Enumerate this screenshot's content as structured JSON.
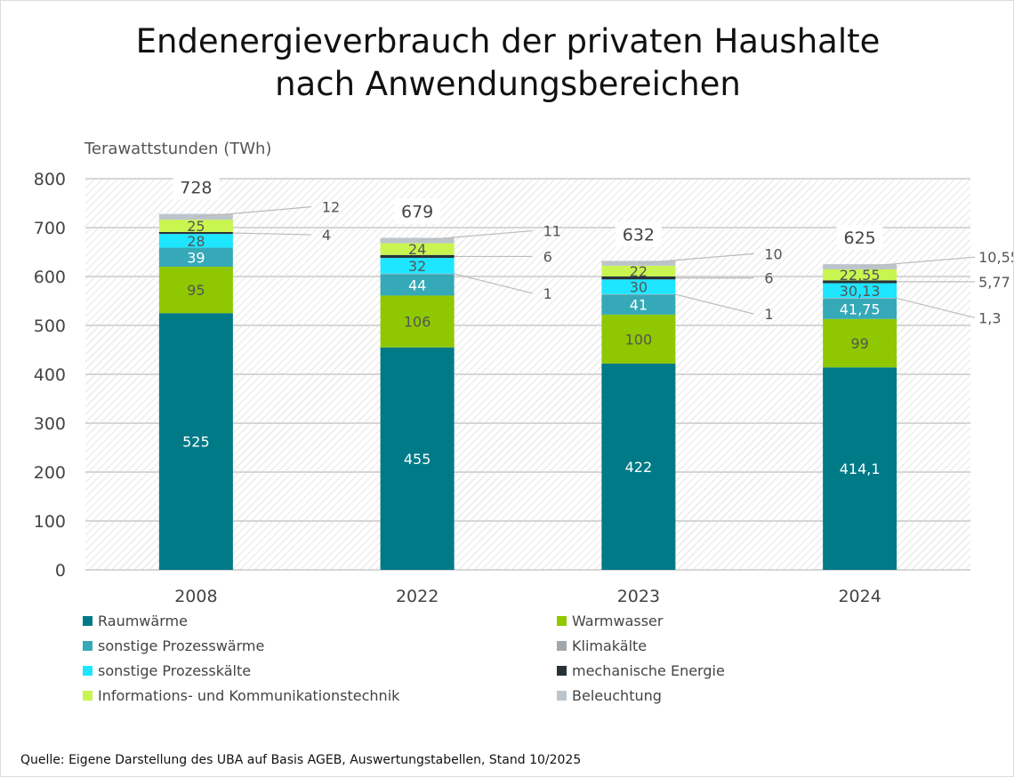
{
  "title_line1": "Endenergieverbrauch der privaten Haushalte",
  "title_line2": "nach Anwendungsbereichen",
  "source": "Quelle: Eigene Darstellung des UBA auf Basis AGEB, Auswertungstabellen, Stand 10/2025",
  "chart_data": {
    "type": "bar",
    "stacked": true,
    "ylabel": "Terawattstunden (TWh)",
    "ylim": [
      0,
      800
    ],
    "yticks": [
      0,
      100,
      200,
      300,
      400,
      500,
      600,
      700,
      800
    ],
    "categories": [
      "2008",
      "2022",
      "2023",
      "2024"
    ],
    "totals": [
      "728",
      "679",
      "632",
      "625"
    ],
    "series": [
      {
        "name": "Raumwärme",
        "color": "#007a87",
        "values": [
          525,
          455,
          422,
          414.1
        ],
        "labels": [
          "525",
          "455",
          "422",
          "414,1"
        ],
        "label_color": "#ffffff"
      },
      {
        "name": "Warmwasser",
        "color": "#8fc800",
        "values": [
          95,
          106,
          100,
          99
        ],
        "labels": [
          "95",
          "106",
          "100",
          "99"
        ],
        "label_color": "#555555"
      },
      {
        "name": "sonstige Prozesswärme",
        "color": "#36a9b8",
        "values": [
          39,
          44,
          41,
          41.75
        ],
        "labels": [
          "39",
          "44",
          "41",
          "41,75"
        ],
        "label_color": "#ffffff"
      },
      {
        "name": "Klimakälte",
        "color": "#a0a8ad",
        "values": [
          0,
          1,
          1,
          1.3
        ],
        "labels": [
          "",
          "1",
          "1",
          "1,3"
        ],
        "callout": true
      },
      {
        "name": "sonstige Prozesskälte",
        "color": "#1ee6ff",
        "values": [
          28,
          32,
          30,
          30.13
        ],
        "labels": [
          "28",
          "32",
          "30",
          "30,13"
        ],
        "label_color": "#555555"
      },
      {
        "name": "mechanische Energie",
        "color": "#263238",
        "values": [
          4,
          6,
          6,
          5.77
        ],
        "labels": [
          "4",
          "6",
          "6",
          "5,77"
        ],
        "callout": true
      },
      {
        "name": "Informations- und Kommunikationstechnik",
        "color": "#c8f550",
        "values": [
          25,
          24,
          22,
          22.55
        ],
        "labels": [
          "25",
          "24",
          "22",
          "22,55"
        ],
        "label_color": "#555555"
      },
      {
        "name": "Beleuchtung",
        "color": "#bcc5cb",
        "values": [
          12,
          11,
          10,
          10.55
        ],
        "labels": [
          "12",
          "11",
          "10",
          "10,55"
        ],
        "callout": true
      }
    ],
    "legend_order": [
      0,
      1,
      2,
      3,
      4,
      5,
      6,
      7
    ],
    "grid": true,
    "legend_placement": "bottom"
  }
}
